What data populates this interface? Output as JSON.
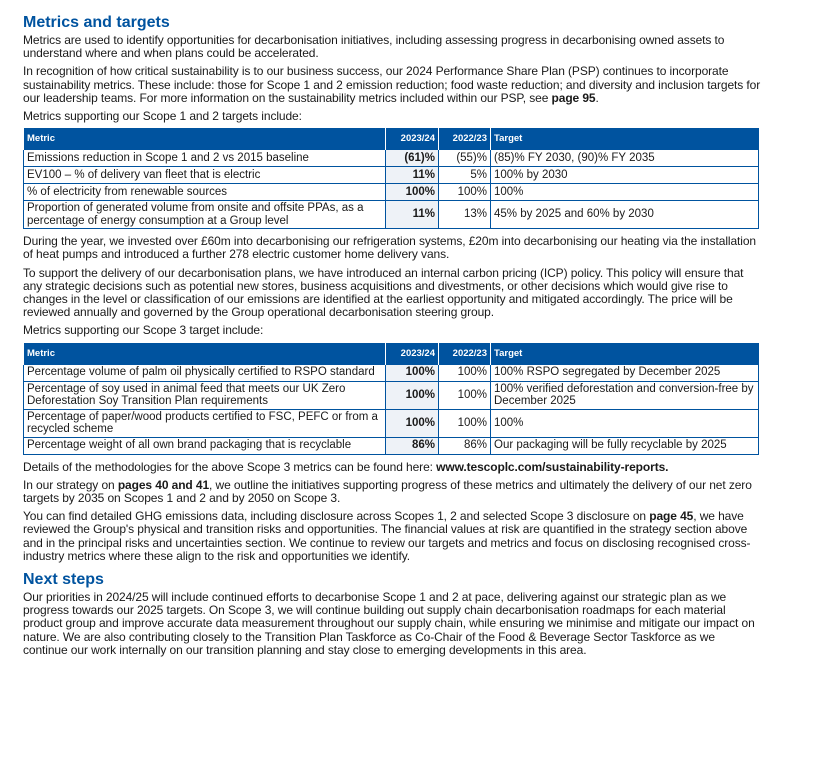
{
  "s1": {
    "heading": "Metrics and targets",
    "p1": "Metrics are used to identify opportunities for decarbonisation initiatives, including assessing progress in decarbonising owned assets to understand where and when plans could be accelerated.",
    "p2": "In recognition of how critical sustainability is to our business success, our 2024 Performance Share Plan (PSP) continues to incorporate sustainability metrics. These include: those for Scope 1 and 2 emission reduction; food waste reduction; and diversity and inclusion targets for our leadership teams. For more information on the sustainability metrics included within our PSP, see ",
    "p2_link": "page 95",
    "p2_end": ".",
    "p3": "Metrics supporting our Scope 1 and 2 targets include:"
  },
  "table1": {
    "headers": [
      "Metric",
      "2023/24",
      "2022/23",
      "Target"
    ],
    "rows": [
      [
        "Emissions reduction in Scope 1 and 2 vs 2015 baseline",
        "(61)%",
        "(55)%",
        "(85)% FY 2030, (90)% FY 2035"
      ],
      [
        "EV100 – % of delivery van fleet that is electric",
        "11%",
        "5%",
        "100% by 2030"
      ],
      [
        "% of electricity from renewable sources",
        "100%",
        "100%",
        "100%"
      ],
      [
        "Proportion of generated volume from onsite and offsite PPAs, as a percentage of energy consumption at a Group level",
        "11%",
        "13%",
        "45% by 2025 and 60% by 2030"
      ]
    ]
  },
  "s2": {
    "p1": "During the year, we invested over £60m into decarbonising our refrigeration systems, £20m into decarbonising our heating via the installation of heat pumps and introduced a further 278 electric customer home delivery vans.",
    "p2": "To support the delivery of our decarbonisation plans, we have introduced an internal carbon pricing (ICP) policy. This policy will ensure that any strategic decisions such as potential new stores, business acquisitions and divestments, or other decisions which would give rise to changes in the level or classification of our emissions are identified at the earliest opportunity and mitigated accordingly. The price will be reviewed annually and governed by the Group operational decarbonisation steering group.",
    "p3": "Metrics supporting our Scope 3 target include:"
  },
  "table2": {
    "headers": [
      "Metric",
      "2023/24",
      "2022/23",
      "Target"
    ],
    "rows": [
      [
        "Percentage volume of palm oil physically certified to RSPO standard",
        "100%",
        "100%",
        "100% RSPO segregated by December 2025"
      ],
      [
        "Percentage of soy used in animal feed that meets our UK Zero Deforestation Soy Transition Plan requirements",
        "100%",
        "100%",
        "100% verified deforestation and conversion-free by December 2025"
      ],
      [
        "Percentage of paper/wood products certified to FSC, PEFC or from a recycled scheme",
        "100%",
        "100%",
        "100%"
      ],
      [
        "Percentage weight of all own brand packaging that is recyclable",
        "86%",
        "86%",
        "Our packaging will be fully recyclable by 2025"
      ]
    ]
  },
  "s3": {
    "p1": "Details of the methodologies for the above Scope 3 metrics can be found here: ",
    "p1_link": "www.tescoplc.com/sustainability-reports.",
    "p2a": "In our strategy on ",
    "p2_link": "pages 40 and 41",
    "p2b": ", we outline the initiatives supporting progress of these metrics and ultimately the delivery of our net zero targets by 2035 on Scopes 1 and 2 and by 2050 on Scope 3.",
    "p3a": "You can find detailed GHG emissions data, including disclosure across Scopes 1, 2 and selected Scope 3 disclosure on ",
    "p3_link": "page 45",
    "p3b": ", we have reviewed the Group's physical and transition risks and opportunities. The financial values at risk are quantified in the strategy section above and in the principal risks and uncertainties section. We continue to review our targets and metrics and focus on disclosing recognised cross-industry metrics where these align to the risk and opportunities we identify."
  },
  "s4": {
    "heading": "Next steps",
    "p1": "Our priorities in 2024/25 will include continued efforts to decarbonise Scope 1 and 2 at pace, delivering against our strategic plan as we progress towards our 2025 targets. On Scope 3, we will continue building out supply chain decarbonisation roadmaps for each material product group and improve accurate data measurement throughout our supply chain, while ensuring we minimise and mitigate our impact on nature. We are also contributing closely to the Transition Plan Taskforce as Co-Chair of the Food & Beverage Sector Taskforce as we continue our work internally on our transition planning and stay close to emerging developments in this area."
  }
}
